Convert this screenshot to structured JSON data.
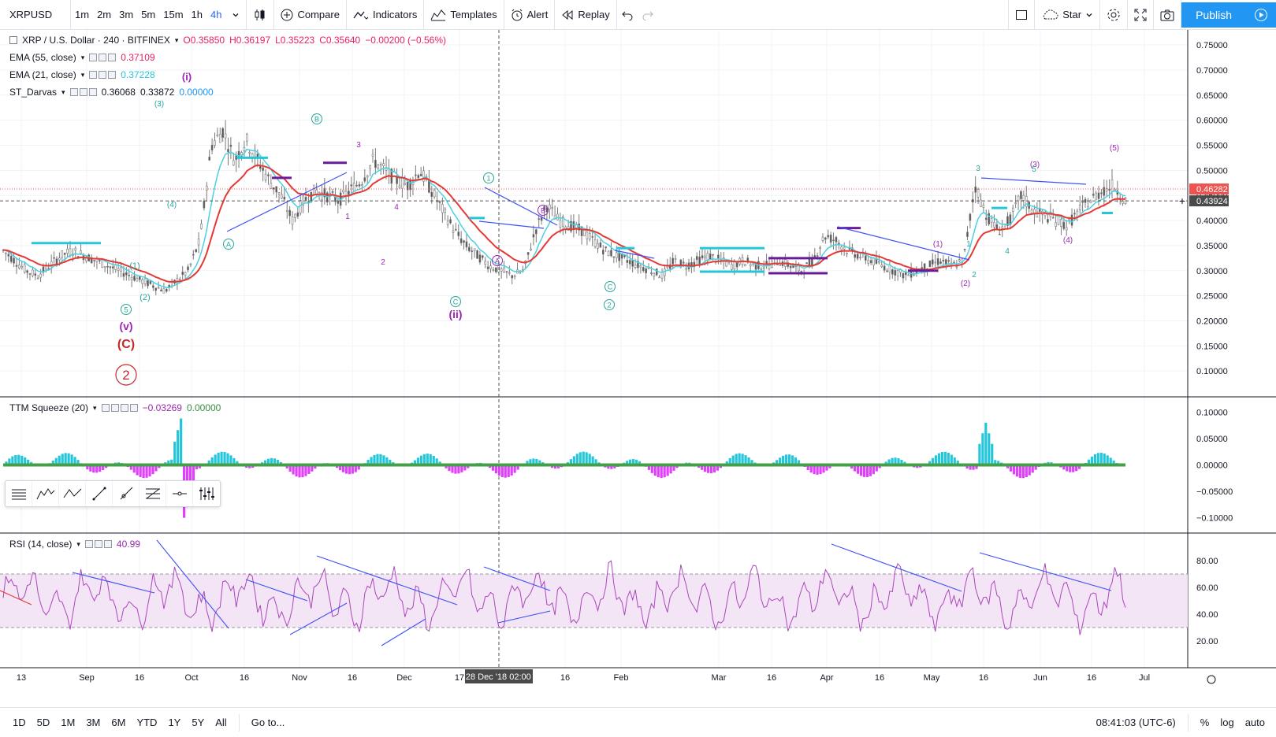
{
  "toolbar": {
    "symbol": "XRPUSD",
    "intervals": [
      "1m",
      "2m",
      "3m",
      "5m",
      "15m",
      "1h",
      "4h"
    ],
    "active_interval": "4h",
    "compare": "Compare",
    "indicators": "Indicators",
    "templates": "Templates",
    "alert": "Alert",
    "replay": "Replay",
    "star": "Star",
    "publish": "Publish"
  },
  "legend": {
    "main": {
      "title": "XRP / U.S. Dollar · 240 · BITFINEX",
      "o": "O0.35850",
      "h": "H0.36197",
      "l": "L0.35223",
      "c": "C0.35640",
      "chg": "−0.00200 (−0.56%)"
    },
    "ema55": {
      "label": "EMA (55, close)",
      "value": "0.37109"
    },
    "ema21": {
      "label": "EMA (21, close)",
      "value": "0.37228"
    },
    "darvas": {
      "label": "ST_Darvas",
      "v1": "0.36068",
      "v2": "0.33872",
      "v3": "0.00000"
    },
    "ttm": {
      "label": "TTM Squeeze (20)",
      "v1": "−0.03269",
      "v2": "0.00000"
    },
    "rsi": {
      "label": "RSI (14, close)",
      "value": "40.99"
    }
  },
  "axes": {
    "price_ticks": [
      "0.75000",
      "0.70000",
      "0.65000",
      "0.60000",
      "0.55000",
      "0.50000",
      "0.45000",
      "0.40000",
      "0.35000",
      "0.30000",
      "0.25000",
      "0.20000",
      "0.15000",
      "0.10000"
    ],
    "price_badges": {
      "last": "0.46282",
      "cursor": "0.43924"
    },
    "ttm_ticks": [
      "0.10000",
      "0.05000",
      "0.00000",
      "−0.05000",
      "−0.10000"
    ],
    "rsi_ticks": [
      "80.00",
      "60.00",
      "40.00",
      "20.00"
    ],
    "time_ticks": [
      "13",
      "Sep",
      "16",
      "Oct",
      "16",
      "Nov",
      "16",
      "Dec",
      "17",
      "16",
      "Feb",
      "Mar",
      "16",
      "Apr",
      "16",
      "May",
      "16",
      "Jun",
      "16",
      "Jul"
    ],
    "crosshair_label": "28 Dec '18",
    "crosshair_time": "02:00"
  },
  "wave_labels": [
    {
      "t": "(i)",
      "c": "#9c27b0"
    },
    {
      "t": "(v)",
      "c": "#9c27b0"
    },
    {
      "t": "(C)",
      "c": "#c62828"
    },
    {
      "t": "2",
      "c": "#c62828"
    },
    {
      "t": "(ii)",
      "c": "#9c27b0"
    },
    {
      "t": "(1)",
      "c": "#26a69a"
    },
    {
      "t": "(2)",
      "c": "#26a69a"
    },
    {
      "t": "(3)",
      "c": "#26a69a"
    },
    {
      "t": "(4)",
      "c": "#26a69a"
    },
    {
      "t": "(5)",
      "c": "#9c27b0"
    },
    {
      "t": "(3)",
      "c": "#9c27b0"
    },
    {
      "t": "(4)",
      "c": "#9c27b0"
    },
    {
      "t": "(1)",
      "c": "#9c27b0"
    },
    {
      "t": "(2)",
      "c": "#9c27b0"
    },
    {
      "t": "A",
      "c": "#26a69a"
    },
    {
      "t": "B",
      "c": "#26a69a"
    },
    {
      "t": "C",
      "c": "#26a69a"
    },
    {
      "t": "A",
      "c": "#9c27b0"
    },
    {
      "t": "B",
      "c": "#9c27b0"
    },
    {
      "t": "C",
      "c": "#26a69a"
    },
    {
      "t": "1",
      "c": "#26a69a"
    },
    {
      "t": "2",
      "c": "#26a69a"
    },
    {
      "t": "5",
      "c": "#26a69a"
    },
    {
      "t": "3",
      "c": "#26a69a"
    },
    {
      "t": "4",
      "c": "#26a69a"
    },
    {
      "t": "5",
      "c": "#26a69a"
    },
    {
      "t": "1",
      "c": "#9c27b0"
    },
    {
      "t": "2",
      "c": "#9c27b0"
    },
    {
      "t": "3",
      "c": "#9c27b0"
    },
    {
      "t": "4",
      "c": "#9c27b0"
    },
    {
      "t": "1",
      "c": "#26a69a"
    },
    {
      "t": "2",
      "c": "#26a69a"
    }
  ],
  "bottombar": {
    "ranges": [
      "1D",
      "5D",
      "1M",
      "3M",
      "6M",
      "YTD",
      "1Y",
      "5Y",
      "All"
    ],
    "goto": "Go to...",
    "clock": "08:41:03 (UTC-6)",
    "pct": "%",
    "log": "log",
    "auto": "auto"
  },
  "colors": {
    "ema_red": "#e53935",
    "ema_cyan": "#4dd0e1",
    "candle": "#7a7a7a",
    "trend": "#3f51f5",
    "rsi": "#ab47bc",
    "rsi_band": "#f3e5f5",
    "darvas_top": "#26c6da",
    "darvas_bottom": "#6a1b9a",
    "accent": "#2196f3"
  },
  "chart_data": {
    "type": "candlestick",
    "symbol": "XRP / U.S. Dollar",
    "interval": "240",
    "price_range": [
      0.05,
      0.78
    ],
    "ttm_range": [
      -0.12,
      0.12
    ],
    "rsi_range": [
      0,
      100
    ],
    "rsi_band": [
      30,
      70
    ],
    "approx_close_path": [
      0.34,
      0.32,
      0.3,
      0.29,
      0.31,
      0.33,
      0.34,
      0.33,
      0.32,
      0.31,
      0.3,
      0.29,
      0.28,
      0.27,
      0.26,
      0.28,
      0.3,
      0.36,
      0.55,
      0.58,
      0.52,
      0.56,
      0.52,
      0.48,
      0.45,
      0.4,
      0.44,
      0.46,
      0.45,
      0.44,
      0.46,
      0.48,
      0.52,
      0.5,
      0.48,
      0.47,
      0.5,
      0.46,
      0.42,
      0.38,
      0.35,
      0.33,
      0.31,
      0.3,
      0.29,
      0.3,
      0.38,
      0.43,
      0.4,
      0.39,
      0.38,
      0.36,
      0.34,
      0.33,
      0.32,
      0.31,
      0.3,
      0.29,
      0.32,
      0.31,
      0.32,
      0.33,
      0.32,
      0.31,
      0.32,
      0.31,
      0.31,
      0.32,
      0.31,
      0.3,
      0.32,
      0.37,
      0.36,
      0.34,
      0.33,
      0.32,
      0.31,
      0.3,
      0.29,
      0.3,
      0.31,
      0.32,
      0.31,
      0.32,
      0.47,
      0.41,
      0.38,
      0.4,
      0.45,
      0.42,
      0.41,
      0.4,
      0.39,
      0.42,
      0.44,
      0.46,
      0.47,
      0.44
    ],
    "ttm_annotation_min": -0.03269,
    "rsi_last": 40.99
  }
}
